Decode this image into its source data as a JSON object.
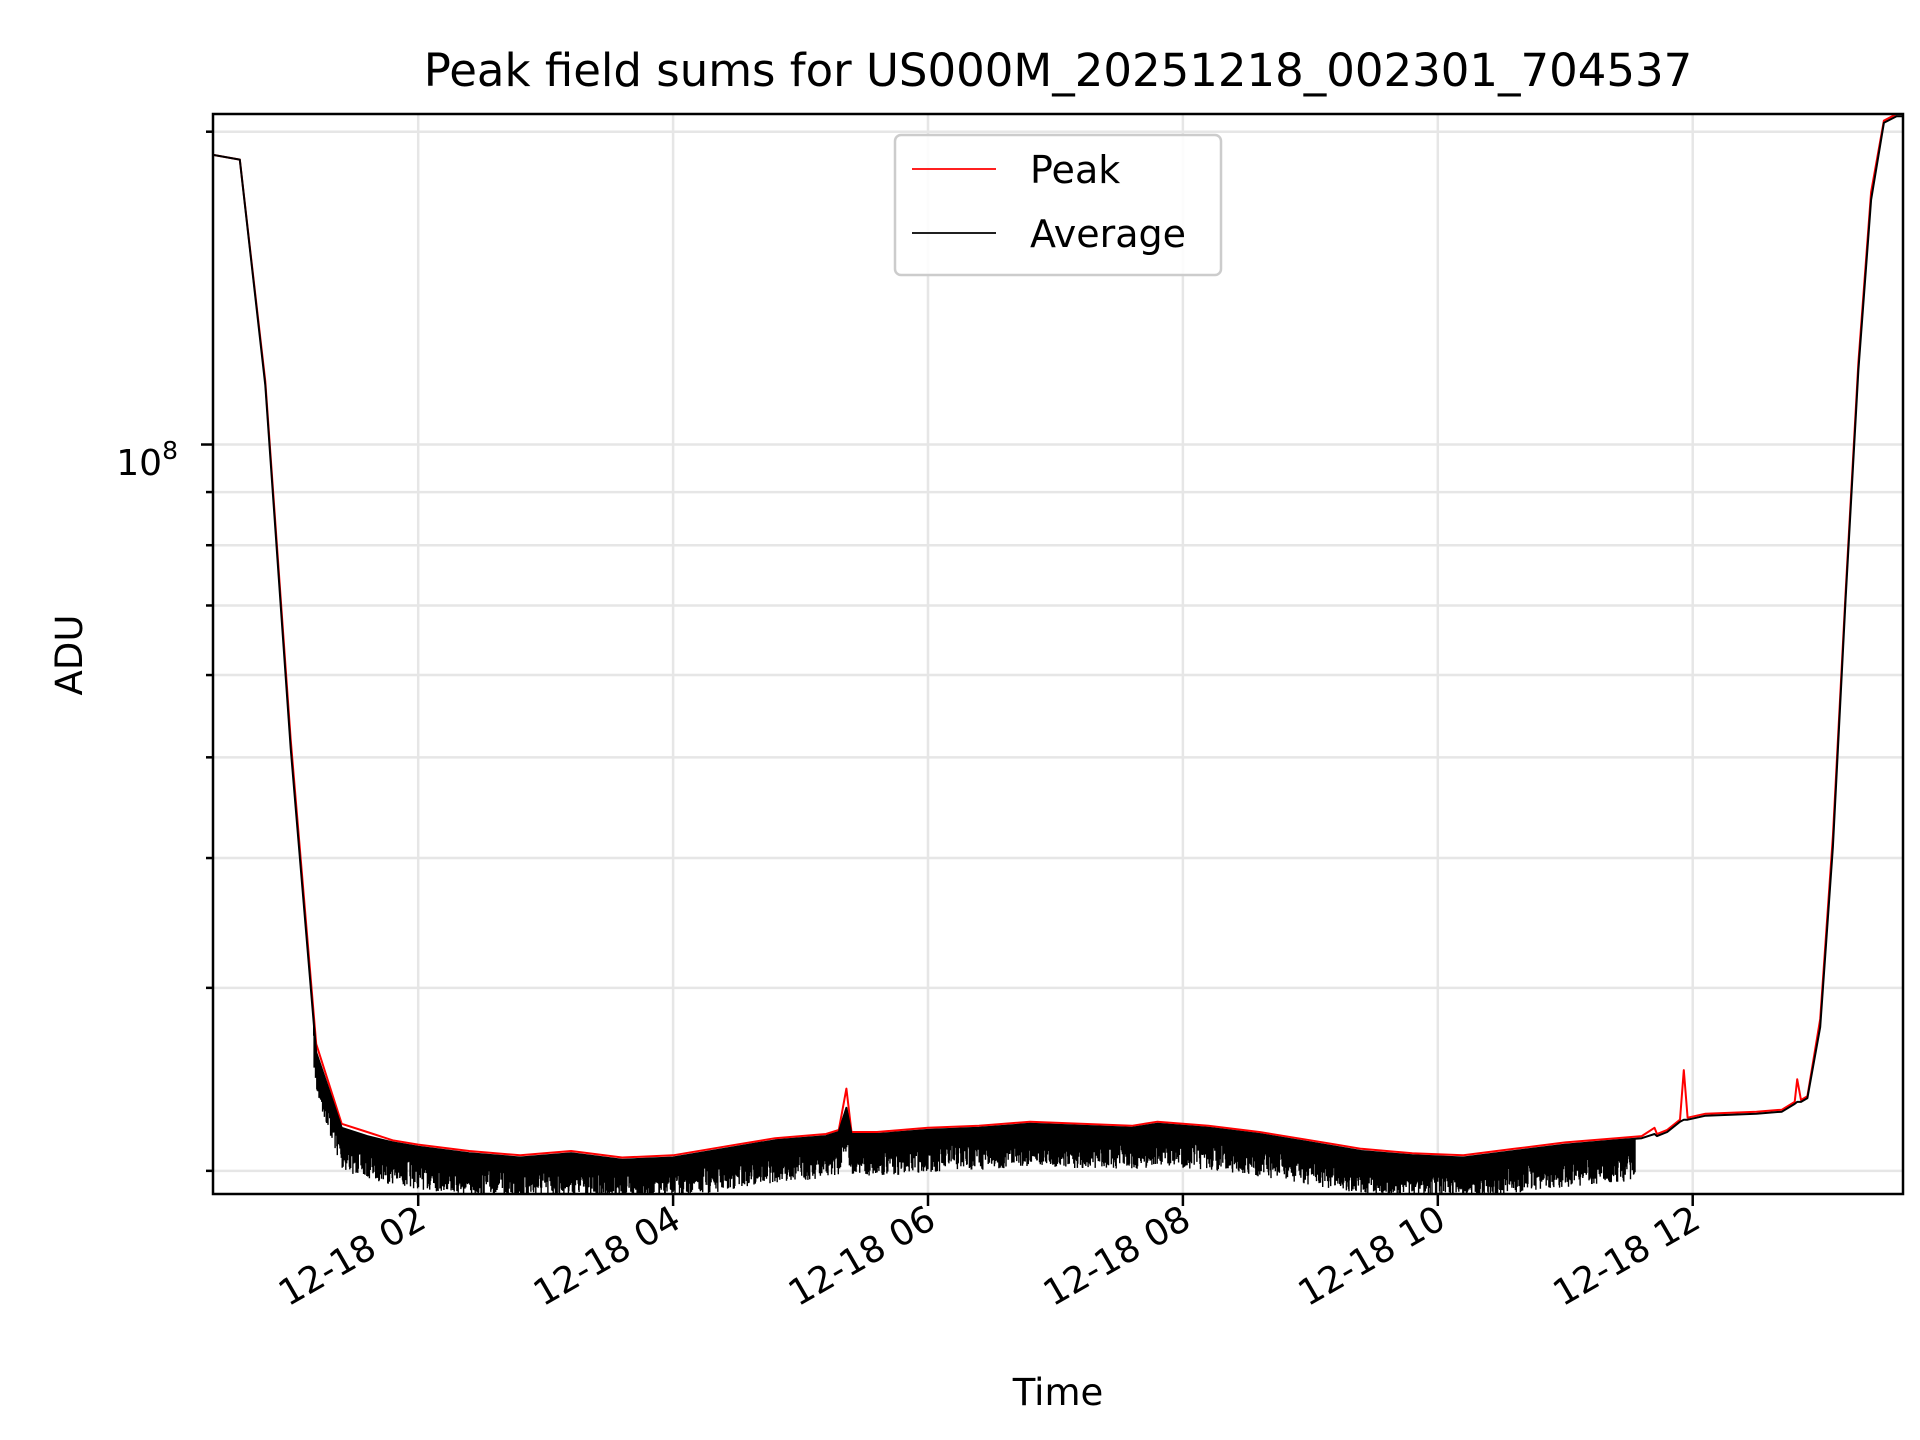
{
  "chart_data": {
    "type": "line",
    "title": "Peak field sums for US000M_20251218_002301_704537",
    "xlabel": "Time",
    "ylabel": "ADU",
    "yscale": "log",
    "xlim_hours": [
      0.39,
      13.65
    ],
    "ylim": [
      19000000,
      208000000
    ],
    "grid": true,
    "legend_position": "upper-center",
    "x_ticks": [
      {
        "value": 2,
        "label": "12-18 02"
      },
      {
        "value": 4,
        "label": "12-18 04"
      },
      {
        "value": 6,
        "label": "12-18 06"
      },
      {
        "value": 8,
        "label": "12-18 08"
      },
      {
        "value": 10,
        "label": "12-18 10"
      },
      {
        "value": 12,
        "label": "12-18 12"
      }
    ],
    "y_major_tick": {
      "value": 100000000,
      "label_base": "10",
      "label_exp": "8"
    },
    "y_minor_ticks": [
      20000000,
      30000000,
      40000000,
      50000000,
      60000000,
      70000000,
      80000000,
      90000000,
      200000000
    ],
    "series": [
      {
        "name": "Peak",
        "color": "#ff0000",
        "x": [
          0.39,
          0.6,
          0.8,
          1.0,
          1.2,
          1.4,
          1.6,
          1.8,
          2.0,
          2.4,
          2.8,
          3.2,
          3.6,
          4.0,
          4.4,
          4.8,
          5.2,
          5.3,
          5.36,
          5.4,
          5.6,
          6.0,
          6.4,
          6.8,
          7.2,
          7.6,
          7.8,
          8.2,
          8.6,
          9.0,
          9.4,
          9.8,
          10.2,
          10.6,
          11.0,
          11.4,
          11.6,
          11.7,
          11.72,
          11.8,
          11.9,
          11.93,
          11.96,
          12.1,
          12.5,
          12.7,
          12.8,
          12.82,
          12.85,
          12.9,
          13.0,
          13.1,
          13.2,
          13.3,
          13.4,
          13.5,
          13.6,
          13.65
        ],
        "y": [
          190000000,
          188000000,
          115000000,
          52000000,
          26500000,
          22200000,
          21800000,
          21400000,
          21200000,
          20900000,
          20700000,
          20900000,
          20600000,
          20700000,
          21100000,
          21500000,
          21700000,
          21900000,
          24000000,
          21800000,
          21800000,
          22000000,
          22100000,
          22300000,
          22200000,
          22100000,
          22300000,
          22100000,
          21800000,
          21400000,
          21000000,
          20800000,
          20700000,
          21000000,
          21300000,
          21500000,
          21600000,
          22000000,
          21700000,
          21900000,
          22400000,
          25000000,
          22500000,
          22700000,
          22800000,
          22900000,
          23300000,
          24500000,
          23400000,
          23600000,
          28000000,
          42000000,
          72000000,
          120000000,
          175000000,
          205000000,
          208000000,
          208000000
        ]
      },
      {
        "name": "Average",
        "color": "#000000",
        "x": [
          0.39,
          0.6,
          0.8,
          1.0,
          1.2,
          1.4,
          1.6,
          1.8,
          2.0,
          2.4,
          2.8,
          3.2,
          3.6,
          4.0,
          4.4,
          4.8,
          5.2,
          5.3,
          5.36,
          5.4,
          5.6,
          6.0,
          6.4,
          6.8,
          7.2,
          7.6,
          7.8,
          8.2,
          8.6,
          9.0,
          9.4,
          9.8,
          10.2,
          10.6,
          11.0,
          11.4,
          11.6,
          11.7,
          11.72,
          11.8,
          11.9,
          11.93,
          11.96,
          12.1,
          12.5,
          12.7,
          12.8,
          12.82,
          12.85,
          12.9,
          13.0,
          13.1,
          13.2,
          13.3,
          13.4,
          13.5,
          13.6,
          13.65
        ],
        "y": [
          190000000,
          188000000,
          114000000,
          51000000,
          26000000,
          22000000,
          21600000,
          21300000,
          21100000,
          20800000,
          20600000,
          20800000,
          20500000,
          20600000,
          21000000,
          21400000,
          21600000,
          21800000,
          23000000,
          21700000,
          21700000,
          21900000,
          22000000,
          22200000,
          22100000,
          22000000,
          22200000,
          22000000,
          21700000,
          21300000,
          20900000,
          20700000,
          20600000,
          20900000,
          21200000,
          21400000,
          21500000,
          21700000,
          21600000,
          21800000,
          22300000,
          22400000,
          22400000,
          22600000,
          22700000,
          22800000,
          23200000,
          23300000,
          23300000,
          23500000,
          27500000,
          41000000,
          71000000,
          118000000,
          172000000,
          204000000,
          207000000,
          207000000
        ]
      }
    ]
  }
}
